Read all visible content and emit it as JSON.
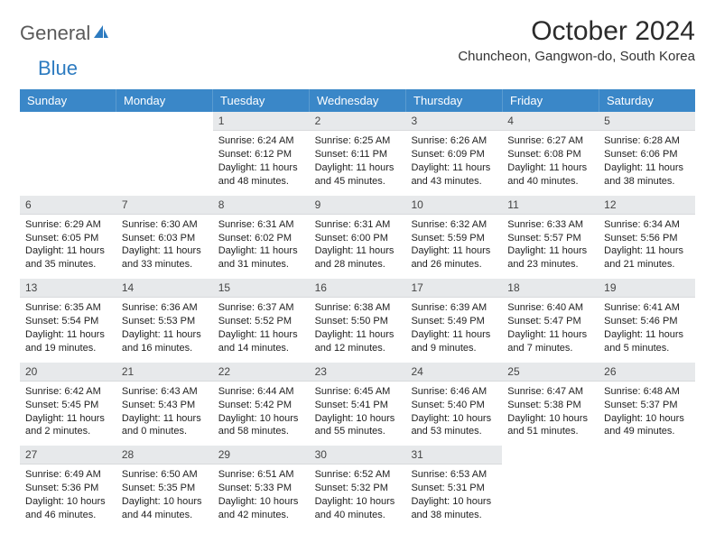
{
  "logo": {
    "text1": "General",
    "text2": "Blue"
  },
  "title": "October 2024",
  "location": "Chuncheon, Gangwon-do, South Korea",
  "colors": {
    "header_bg": "#3a87c8",
    "header_text": "#ffffff",
    "daynum_bg": "#e7e9eb",
    "logo_blue": "#2d7bc0"
  },
  "dayNames": [
    "Sunday",
    "Monday",
    "Tuesday",
    "Wednesday",
    "Thursday",
    "Friday",
    "Saturday"
  ],
  "weeks": [
    [
      {
        "n": "",
        "sr": "",
        "ss": "",
        "dl": ""
      },
      {
        "n": "",
        "sr": "",
        "ss": "",
        "dl": ""
      },
      {
        "n": "1",
        "sr": "Sunrise: 6:24 AM",
        "ss": "Sunset: 6:12 PM",
        "dl": "Daylight: 11 hours and 48 minutes."
      },
      {
        "n": "2",
        "sr": "Sunrise: 6:25 AM",
        "ss": "Sunset: 6:11 PM",
        "dl": "Daylight: 11 hours and 45 minutes."
      },
      {
        "n": "3",
        "sr": "Sunrise: 6:26 AM",
        "ss": "Sunset: 6:09 PM",
        "dl": "Daylight: 11 hours and 43 minutes."
      },
      {
        "n": "4",
        "sr": "Sunrise: 6:27 AM",
        "ss": "Sunset: 6:08 PM",
        "dl": "Daylight: 11 hours and 40 minutes."
      },
      {
        "n": "5",
        "sr": "Sunrise: 6:28 AM",
        "ss": "Sunset: 6:06 PM",
        "dl": "Daylight: 11 hours and 38 minutes."
      }
    ],
    [
      {
        "n": "6",
        "sr": "Sunrise: 6:29 AM",
        "ss": "Sunset: 6:05 PM",
        "dl": "Daylight: 11 hours and 35 minutes."
      },
      {
        "n": "7",
        "sr": "Sunrise: 6:30 AM",
        "ss": "Sunset: 6:03 PM",
        "dl": "Daylight: 11 hours and 33 minutes."
      },
      {
        "n": "8",
        "sr": "Sunrise: 6:31 AM",
        "ss": "Sunset: 6:02 PM",
        "dl": "Daylight: 11 hours and 31 minutes."
      },
      {
        "n": "9",
        "sr": "Sunrise: 6:31 AM",
        "ss": "Sunset: 6:00 PM",
        "dl": "Daylight: 11 hours and 28 minutes."
      },
      {
        "n": "10",
        "sr": "Sunrise: 6:32 AM",
        "ss": "Sunset: 5:59 PM",
        "dl": "Daylight: 11 hours and 26 minutes."
      },
      {
        "n": "11",
        "sr": "Sunrise: 6:33 AM",
        "ss": "Sunset: 5:57 PM",
        "dl": "Daylight: 11 hours and 23 minutes."
      },
      {
        "n": "12",
        "sr": "Sunrise: 6:34 AM",
        "ss": "Sunset: 5:56 PM",
        "dl": "Daylight: 11 hours and 21 minutes."
      }
    ],
    [
      {
        "n": "13",
        "sr": "Sunrise: 6:35 AM",
        "ss": "Sunset: 5:54 PM",
        "dl": "Daylight: 11 hours and 19 minutes."
      },
      {
        "n": "14",
        "sr": "Sunrise: 6:36 AM",
        "ss": "Sunset: 5:53 PM",
        "dl": "Daylight: 11 hours and 16 minutes."
      },
      {
        "n": "15",
        "sr": "Sunrise: 6:37 AM",
        "ss": "Sunset: 5:52 PM",
        "dl": "Daylight: 11 hours and 14 minutes."
      },
      {
        "n": "16",
        "sr": "Sunrise: 6:38 AM",
        "ss": "Sunset: 5:50 PM",
        "dl": "Daylight: 11 hours and 12 minutes."
      },
      {
        "n": "17",
        "sr": "Sunrise: 6:39 AM",
        "ss": "Sunset: 5:49 PM",
        "dl": "Daylight: 11 hours and 9 minutes."
      },
      {
        "n": "18",
        "sr": "Sunrise: 6:40 AM",
        "ss": "Sunset: 5:47 PM",
        "dl": "Daylight: 11 hours and 7 minutes."
      },
      {
        "n": "19",
        "sr": "Sunrise: 6:41 AM",
        "ss": "Sunset: 5:46 PM",
        "dl": "Daylight: 11 hours and 5 minutes."
      }
    ],
    [
      {
        "n": "20",
        "sr": "Sunrise: 6:42 AM",
        "ss": "Sunset: 5:45 PM",
        "dl": "Daylight: 11 hours and 2 minutes."
      },
      {
        "n": "21",
        "sr": "Sunrise: 6:43 AM",
        "ss": "Sunset: 5:43 PM",
        "dl": "Daylight: 11 hours and 0 minutes."
      },
      {
        "n": "22",
        "sr": "Sunrise: 6:44 AM",
        "ss": "Sunset: 5:42 PM",
        "dl": "Daylight: 10 hours and 58 minutes."
      },
      {
        "n": "23",
        "sr": "Sunrise: 6:45 AM",
        "ss": "Sunset: 5:41 PM",
        "dl": "Daylight: 10 hours and 55 minutes."
      },
      {
        "n": "24",
        "sr": "Sunrise: 6:46 AM",
        "ss": "Sunset: 5:40 PM",
        "dl": "Daylight: 10 hours and 53 minutes."
      },
      {
        "n": "25",
        "sr": "Sunrise: 6:47 AM",
        "ss": "Sunset: 5:38 PM",
        "dl": "Daylight: 10 hours and 51 minutes."
      },
      {
        "n": "26",
        "sr": "Sunrise: 6:48 AM",
        "ss": "Sunset: 5:37 PM",
        "dl": "Daylight: 10 hours and 49 minutes."
      }
    ],
    [
      {
        "n": "27",
        "sr": "Sunrise: 6:49 AM",
        "ss": "Sunset: 5:36 PM",
        "dl": "Daylight: 10 hours and 46 minutes."
      },
      {
        "n": "28",
        "sr": "Sunrise: 6:50 AM",
        "ss": "Sunset: 5:35 PM",
        "dl": "Daylight: 10 hours and 44 minutes."
      },
      {
        "n": "29",
        "sr": "Sunrise: 6:51 AM",
        "ss": "Sunset: 5:33 PM",
        "dl": "Daylight: 10 hours and 42 minutes."
      },
      {
        "n": "30",
        "sr": "Sunrise: 6:52 AM",
        "ss": "Sunset: 5:32 PM",
        "dl": "Daylight: 10 hours and 40 minutes."
      },
      {
        "n": "31",
        "sr": "Sunrise: 6:53 AM",
        "ss": "Sunset: 5:31 PM",
        "dl": "Daylight: 10 hours and 38 minutes."
      },
      {
        "n": "",
        "sr": "",
        "ss": "",
        "dl": ""
      },
      {
        "n": "",
        "sr": "",
        "ss": "",
        "dl": ""
      }
    ]
  ]
}
